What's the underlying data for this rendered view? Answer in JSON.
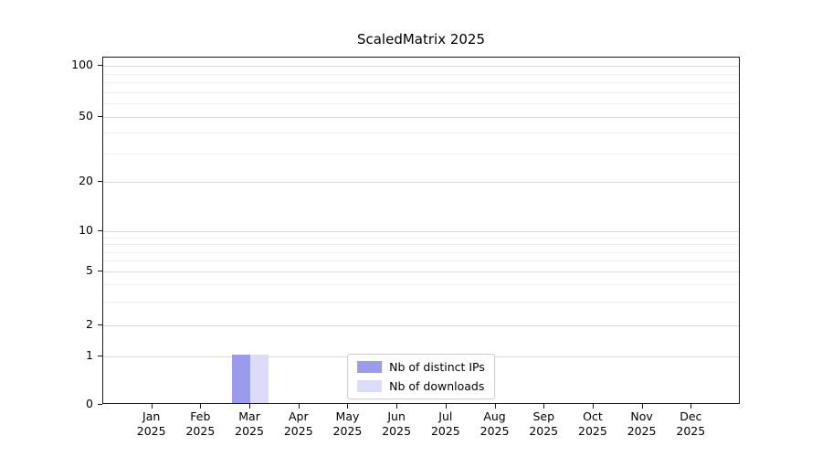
{
  "chart_data": {
    "type": "bar",
    "title": "ScaledMatrix 2025",
    "categories": [
      "Jan",
      "Feb",
      "Mar",
      "Apr",
      "May",
      "Jun",
      "Jul",
      "Aug",
      "Sep",
      "Oct",
      "Nov",
      "Dec"
    ],
    "category_year": "2025",
    "series": [
      {
        "name": "Nb of distinct IPs",
        "color": "#9b9bee",
        "values": [
          0,
          0,
          1,
          0,
          0,
          0,
          0,
          0,
          0,
          0,
          0,
          0
        ]
      },
      {
        "name": "Nb of downloads",
        "color": "#dcdcf8",
        "values": [
          0,
          0,
          1,
          0,
          0,
          0,
          0,
          0,
          0,
          0,
          0,
          0
        ]
      }
    ],
    "yticks": [
      0,
      1,
      2,
      5,
      10,
      20,
      50,
      100
    ],
    "ylim": [
      0,
      100
    ],
    "grid": true,
    "legend_position": "lower center"
  }
}
